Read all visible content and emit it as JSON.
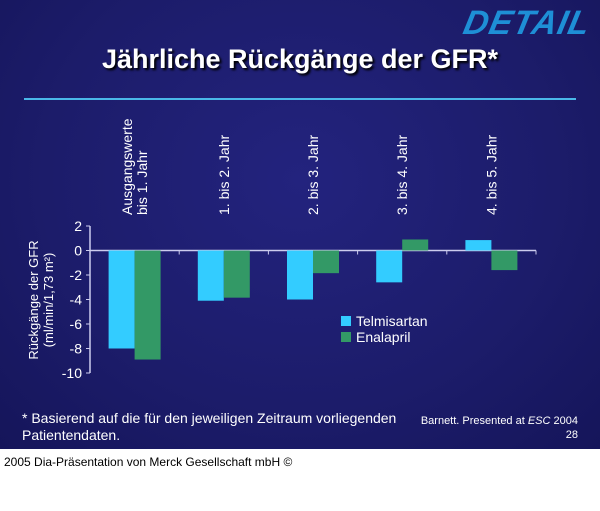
{
  "logo": "DETAIL",
  "title": "Jährliche Rückgänge der GFR*",
  "footnote": "* Basierend auf die für den jeweiligen Zeitraum vorliegenden Patientendaten.",
  "citation": {
    "prefix": "Barnett. Presented at ",
    "venue": "ESC",
    "year": " 2004",
    "page": "28"
  },
  "copyright": "2005 Dia-Präsentation von Merck Gesellschaft mbH ©",
  "colors": {
    "telmisartan": "#33ccff",
    "enalapril": "#339966",
    "background": "#1c1c6a",
    "rule": "#4ab8e8"
  },
  "chart_data": {
    "type": "bar",
    "categories": [
      "Ausgangswerte bis 1. Jahr",
      "1. bis 2. Jahr",
      "2. bis 3. Jahr",
      "3. bis 4. Jahr",
      "4. bis 5. Jahr"
    ],
    "category_lines": [
      [
        "Ausgangswerte",
        "bis 1. Jahr"
      ],
      [
        "1. bis 2. Jahr"
      ],
      [
        "2. bis 3. Jahr"
      ],
      [
        "3. bis 4. Jahr"
      ],
      [
        "4. bis 5. Jahr"
      ]
    ],
    "series": [
      {
        "name": "Telmisartan",
        "values": [
          -8.0,
          -4.1,
          -4.0,
          -2.6,
          0.85
        ]
      },
      {
        "name": "Enalapril",
        "values": [
          -8.9,
          -3.85,
          -1.85,
          0.9,
          -1.6
        ]
      }
    ],
    "ylabel": [
      "Rückgänge der GFR",
      "(ml/min/1,73 m²)"
    ],
    "ylim": [
      -10,
      2
    ],
    "yticks": [
      "2",
      "0",
      "-2",
      "-4",
      "-6",
      "-8",
      "-10"
    ],
    "grid": false,
    "legend": "center-right"
  }
}
